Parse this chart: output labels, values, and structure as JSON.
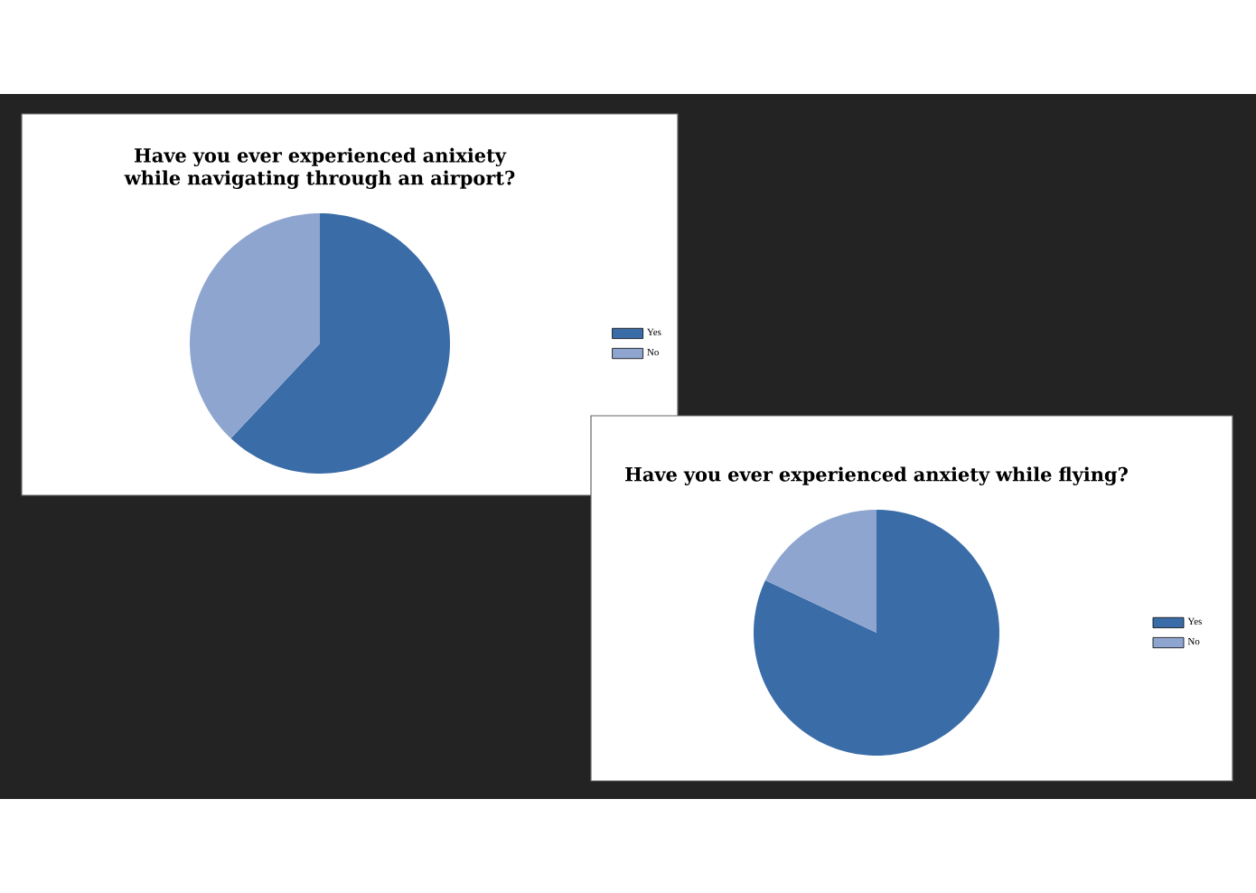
{
  "chart_data": [
    {
      "type": "pie",
      "title": "Have you ever experienced anixiety while navigating through an airport?",
      "categories": [
        "Yes",
        "No"
      ],
      "values": [
        62,
        38
      ],
      "colors": [
        "#3a6ca8",
        "#8ea6cf"
      ],
      "legend": "right"
    },
    {
      "type": "pie",
      "title": "Have you ever experienced anxiety while flying?",
      "categories": [
        "Yes",
        "No"
      ],
      "values": [
        82,
        18
      ],
      "colors": [
        "#3a6ca8",
        "#8ea6cf"
      ],
      "legend": "right"
    }
  ]
}
